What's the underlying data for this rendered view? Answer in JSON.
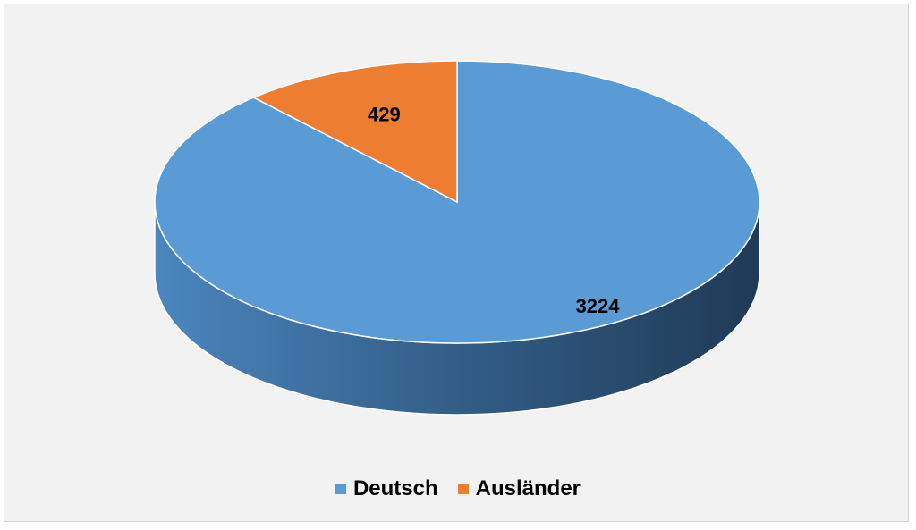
{
  "chart_data": {
    "type": "pie",
    "title": "",
    "categories": [
      "Deutsch",
      "Ausländer"
    ],
    "values": [
      3224,
      429
    ],
    "colors": [
      "#5b9bd5",
      "#ed7d31"
    ],
    "legend_position": "bottom",
    "data_labels": [
      "3224",
      "429"
    ]
  }
}
